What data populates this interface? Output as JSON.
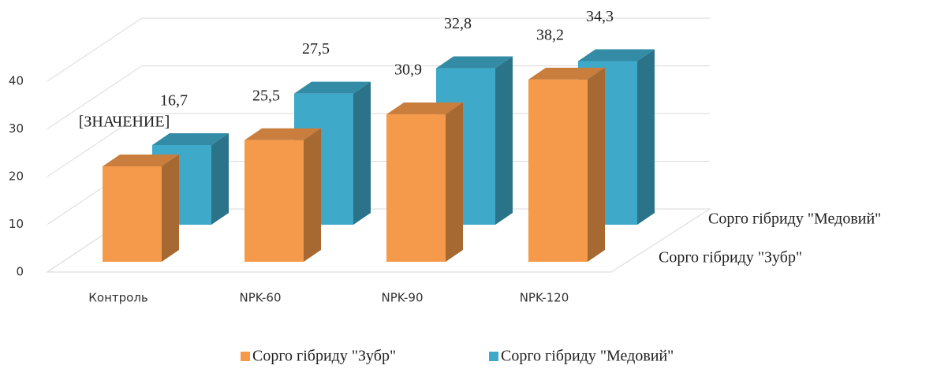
{
  "chart_data": {
    "type": "bar3d",
    "categories": [
      "Контроль",
      "NPK-60",
      "NPK-90",
      "NPK-120"
    ],
    "series": [
      {
        "name": "Сорго гібриду \"Зубр\"",
        "color": "#f59a4a",
        "values": [
          20,
          25.5,
          30.9,
          38.2
        ],
        "value_labels": [
          "[ЗНАЧЕНИЕ]",
          "25,5",
          "30,9",
          "38,2"
        ]
      },
      {
        "name": "Сорго гібриду \"Медовий\"",
        "color": "#3ea9c9",
        "values": [
          16.7,
          27.5,
          32.8,
          34.3
        ],
        "value_labels": [
          "16,7",
          "27,5",
          "32,8",
          "34,3"
        ]
      }
    ],
    "ylim": [
      0,
      40
    ],
    "yticks": [
      0,
      10,
      20,
      30,
      40
    ],
    "grid": true,
    "legend": "bottom"
  }
}
